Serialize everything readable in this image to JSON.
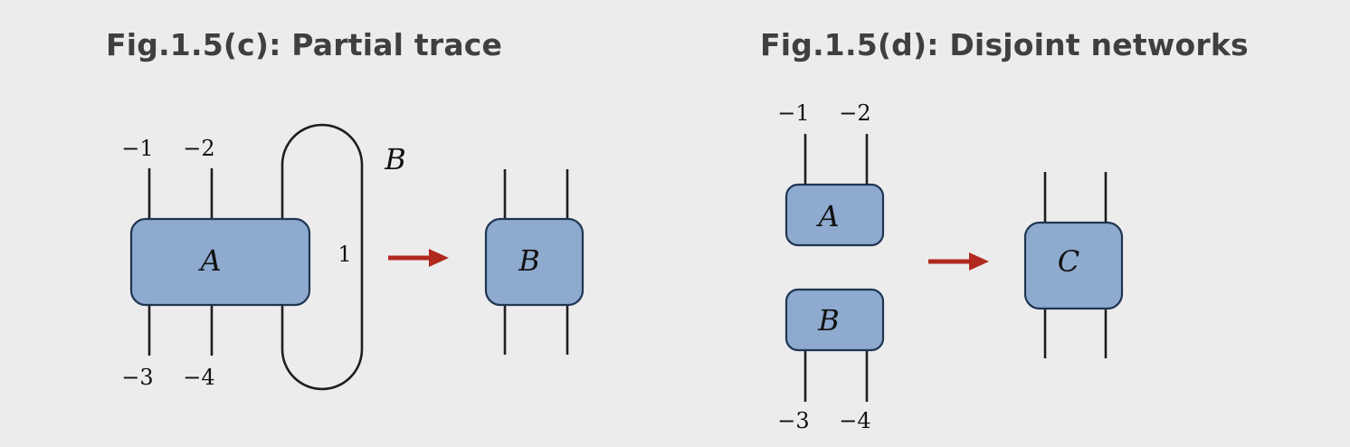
{
  "fig_c": {
    "title": "Fig.1.5(c): Partial trace",
    "tensor_before": "A",
    "loop_label": "B",
    "contracted_index": "1",
    "tensor_after": "B",
    "top_indices": [
      "−1",
      "−2"
    ],
    "bottom_indices": [
      "−3",
      "−4"
    ]
  },
  "fig_d": {
    "title": "Fig.1.5(d): Disjoint networks",
    "tensor_top": "A",
    "tensor_bottom": "B",
    "tensor_after": "C",
    "top_indices": [
      "−1",
      "−2"
    ],
    "bottom_indices": [
      "−3",
      "−4"
    ]
  },
  "colors": {
    "background": "#ececec",
    "tensor_fill": "#8eaacf",
    "tensor_stroke": "#1f3552",
    "arrow": "#b0281e",
    "title_text": "#3f3f3f"
  }
}
